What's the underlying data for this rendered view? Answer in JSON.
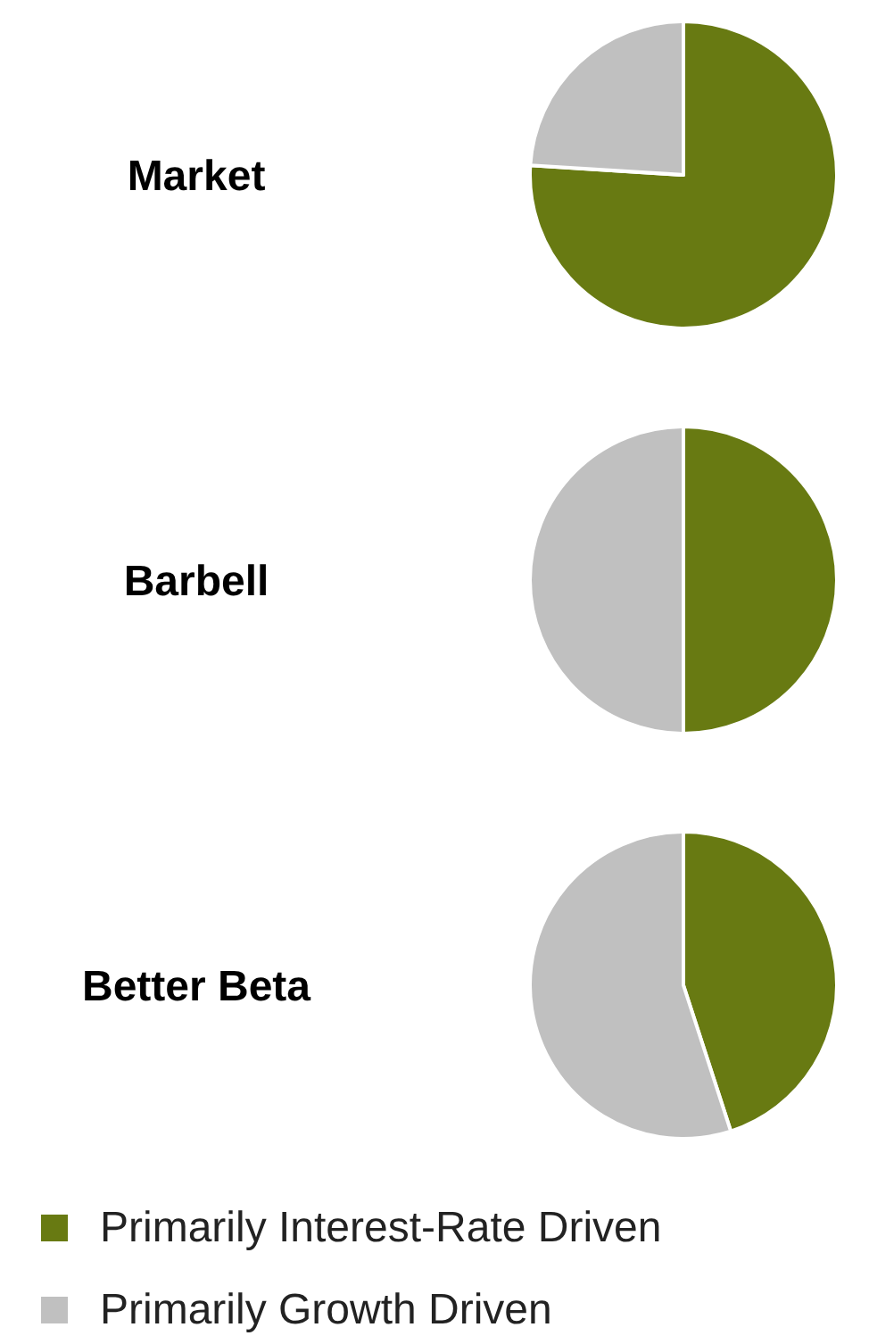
{
  "chart_data": [
    {
      "type": "pie",
      "title": "Market",
      "categories": [
        null,
        null
      ],
      "values": [
        76,
        24
      ],
      "colors": [
        "#687a12",
        "#c0c0c0"
      ],
      "legend": false
    },
    {
      "type": "pie",
      "title": "Barbell",
      "categories": [
        null,
        null
      ],
      "values": [
        50,
        50
      ],
      "colors": [
        "#687a12",
        "#c0c0c0"
      ],
      "legend": false
    },
    {
      "type": "pie",
      "title": "Better Beta",
      "categories": [
        "Primarily Interest-Rate Driven",
        "Primarily Growth Driven"
      ],
      "values": [
        45,
        55
      ],
      "colors": [
        "#687a12",
        "#c0c0c0"
      ],
      "legend": "bottom left"
    }
  ]
}
